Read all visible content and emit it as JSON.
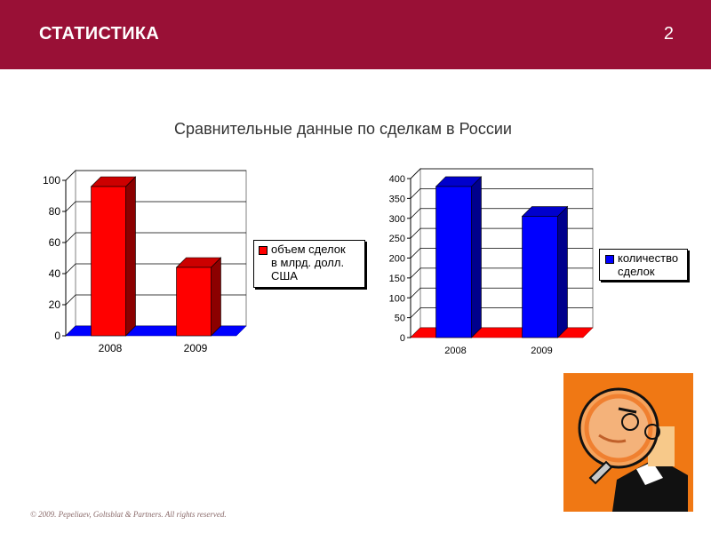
{
  "header": {
    "title": "СТАТИСТИКА",
    "page_number": "2"
  },
  "subtitle": "Сравнительные данные по сделкам в России",
  "footer": "© 2009. Pepeliaev, Goltsblat & Partners. All rights reserved.",
  "colors": {
    "header_bg": "#991036",
    "red": "#ff0000",
    "blue": "#0000ff",
    "orange": "#f07814"
  },
  "illustration": {
    "icon": "magnifier-person-icon"
  },
  "chart_data": [
    {
      "type": "bar",
      "categories": [
        "2008",
        "2009"
      ],
      "series": [
        {
          "name": "объем сделок в млрд. долл. США",
          "values": [
            96,
            44
          ]
        }
      ],
      "legend_lines": [
        "объем сделок",
        "в млрд. долл.",
        "США"
      ],
      "ylim": [
        0,
        100
      ],
      "yticks": [
        0,
        20,
        40,
        60,
        80,
        100
      ],
      "grid": true,
      "legend_position": "right",
      "bar_color": "#ff0000",
      "floor_color": "#0000ff"
    },
    {
      "type": "bar",
      "categories": [
        "2008",
        "2009"
      ],
      "series": [
        {
          "name": "количество сделок",
          "values": [
            380,
            305
          ]
        }
      ],
      "legend_lines": [
        "количество",
        "сделок"
      ],
      "ylim": [
        0,
        400
      ],
      "yticks": [
        0,
        50,
        100,
        150,
        200,
        250,
        300,
        350,
        400
      ],
      "grid": true,
      "legend_position": "right",
      "bar_color": "#0000ff",
      "floor_color": "#ff0000"
    }
  ]
}
